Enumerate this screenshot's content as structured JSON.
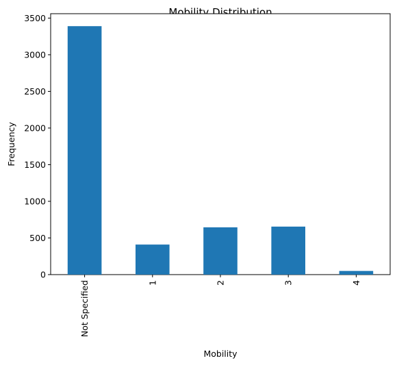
{
  "chart_data": {
    "type": "bar",
    "title": "Mobility Distribution",
    "xlabel": "Mobility",
    "ylabel": "Frequency",
    "categories": [
      "Not Specified",
      "1",
      "2",
      "3",
      "4"
    ],
    "values": [
      3390,
      410,
      645,
      655,
      50
    ],
    "ylim": [
      0,
      3560
    ],
    "yticks": [
      0,
      500,
      1000,
      1500,
      2000,
      2500,
      3000,
      3500
    ],
    "bar_color": "#1f77b4",
    "grid": false,
    "legend": "none"
  }
}
